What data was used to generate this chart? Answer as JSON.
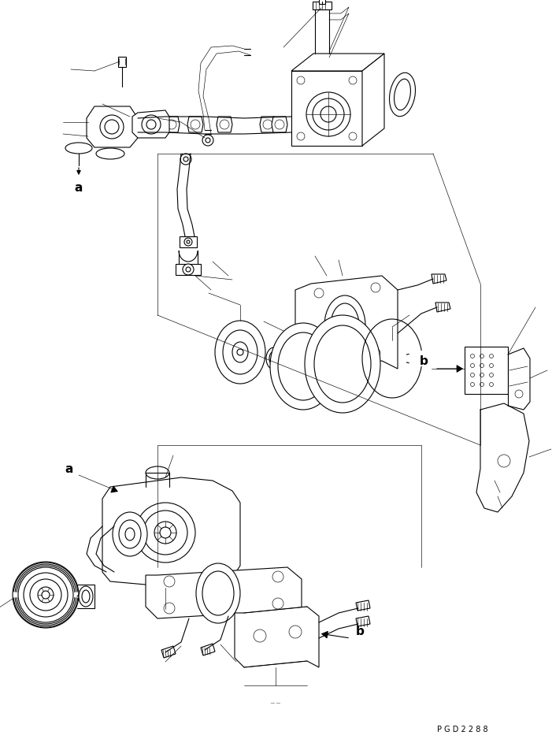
{
  "bg_color": "#ffffff",
  "lc": "#000000",
  "lw": 0.8,
  "tlw": 0.45,
  "fig_width": 7.01,
  "fig_height": 9.38,
  "dpi": 100,
  "watermark": "P G D 2 2 8 8",
  "label_a": "a",
  "label_b": "b"
}
